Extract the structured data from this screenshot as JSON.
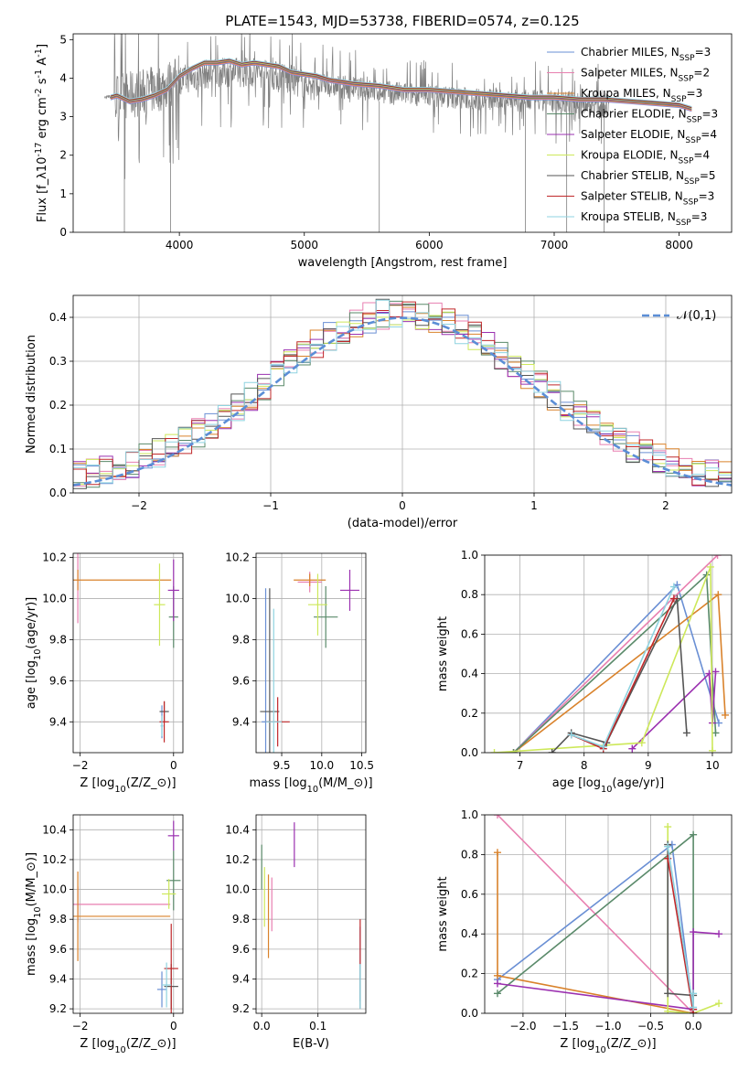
{
  "figure_title": "PLATE=1543, MJD=53738, FIBERID=0574, z=0.125",
  "models": [
    {
      "label": "Chabrier MILES, N$_{SSP}$=3",
      "imf": "Chabrier",
      "library": "MILES",
      "n_ssp": "3",
      "color": "#6a8fd4"
    },
    {
      "label": "Salpeter MILES, N$_{SSP}$=2",
      "imf": "Salpeter",
      "library": "MILES",
      "n_ssp": "2",
      "color": "#e87fb0"
    },
    {
      "label": "Kroupa MILES, N$_{SSP}$=3",
      "imf": "Kroupa",
      "library": "MILES",
      "n_ssp": "3",
      "color": "#d9822b"
    },
    {
      "label": "Chabrier ELODIE, N$_{SSP}$=3",
      "imf": "Chabrier",
      "library": "ELODIE",
      "n_ssp": "3",
      "color": "#5a8a6a"
    },
    {
      "label": "Salpeter ELODIE, N$_{SSP}$=4",
      "imf": "Salpeter",
      "library": "ELODIE",
      "n_ssp": "4",
      "color": "#9b30b0"
    },
    {
      "label": "Kroupa ELODIE, N$_{SSP}$=4",
      "imf": "Kroupa",
      "library": "ELODIE",
      "n_ssp": "4",
      "color": "#cde85a"
    },
    {
      "label": "Chabrier STELIB, N$_{SSP}$=5",
      "imf": "Chabrier",
      "library": "STELIB",
      "n_ssp": "5",
      "color": "#555555"
    },
    {
      "label": "Salpeter STELIB, N$_{SSP}$=3",
      "imf": "Salpeter",
      "library": "STELIB",
      "n_ssp": "3",
      "color": "#c0282a"
    },
    {
      "label": "Kroupa STELIB, N$_{SSP}$=3",
      "imf": "Kroupa",
      "library": "STELIB",
      "n_ssp": "3",
      "color": "#8fd3e0"
    }
  ],
  "chart_data": [
    {
      "id": "spectrum",
      "type": "line",
      "title": "PLATE=1543, MJD=53738, FIBERID=0574, z=0.125",
      "xlabel": "wavelength [Angstrom, rest frame]",
      "ylabel": "Flux [f$_\\lambda$10$^{-17}$ erg cm$^{-2}$ s$^{-1}$ A$^{-1}$]",
      "xlim": [
        3150,
        8420
      ],
      "ylim": [
        0,
        5.15
      ],
      "xticks": [
        4000,
        5000,
        6000,
        7000,
        8000
      ],
      "yticks": [
        0,
        1,
        2,
        3,
        4,
        5
      ],
      "grid": false,
      "legend": "right",
      "data_color": "#808080",
      "data_envelope": {
        "x": [
          3400,
          3600,
          3800,
          4000,
          4200,
          4400,
          4600,
          4800,
          5000,
          5200,
          5400,
          5600,
          5800,
          6000,
          6200,
          6400,
          6600,
          6800,
          7000,
          7200,
          7400
        ],
        "y": [
          3.5,
          3.55,
          3.7,
          3.95,
          4.1,
          4.15,
          4.15,
          4.05,
          3.85,
          3.8,
          3.75,
          3.65,
          3.6,
          3.55,
          3.5,
          3.45,
          3.45,
          3.4,
          3.4,
          3.35,
          3.3
        ]
      },
      "model_curve": {
        "x": [
          3450,
          3500,
          3600,
          3700,
          3800,
          3900,
          4000,
          4100,
          4200,
          4300,
          4400,
          4500,
          4600,
          4700,
          4800,
          4900,
          5000,
          5100,
          5200,
          5400,
          5600,
          5800,
          6000,
          6200,
          6400,
          6600,
          6800,
          7000,
          7200,
          7400,
          7600,
          7800,
          8000,
          8100
        ],
        "y": [
          3.5,
          3.55,
          3.4,
          3.45,
          3.55,
          3.7,
          4.05,
          4.25,
          4.4,
          4.4,
          4.45,
          4.35,
          4.4,
          4.35,
          4.3,
          4.15,
          4.1,
          4.05,
          3.95,
          3.85,
          3.8,
          3.7,
          3.7,
          3.65,
          3.6,
          3.55,
          3.5,
          3.5,
          3.45,
          3.45,
          3.4,
          3.35,
          3.3,
          3.2
        ]
      }
    },
    {
      "id": "residuals",
      "type": "line",
      "xlabel": "(data-model)/error",
      "ylabel": "Normed distribution",
      "xlim": [
        -2.5,
        2.5
      ],
      "ylim": [
        0,
        0.45
      ],
      "xticks": [
        -2,
        -1,
        0,
        1,
        2
      ],
      "yticks": [
        0.0,
        0.1,
        0.2,
        0.3,
        0.4
      ],
      "grid": true,
      "legend": "top-right",
      "gaussian_label": "$\\mathcal{N}(0,1)$",
      "gaussian_color": "#5b8ed6"
    },
    {
      "id": "age_vs_Z",
      "type": "scatter",
      "xlabel": "Z [log$_{10}$(Z/Z$_\\odot$)]",
      "ylabel": "age  [log$_{10}$(age/yr)]",
      "xlim": [
        -2.15,
        0.2
      ],
      "ylim": [
        9.25,
        10.22
      ],
      "xticks": [
        -2,
        0
      ],
      "yticks": [
        9.4,
        9.6,
        9.8,
        10.0,
        10.2
      ],
      "grid": true,
      "points": [
        {
          "model": 0,
          "x": -0.25,
          "y": 9.4,
          "xerr": 0.02,
          "yerr": 0.08
        },
        {
          "model": 1,
          "x": -2.05,
          "y": 10.08,
          "xerr": 0.0,
          "yerr": 0.2
        },
        {
          "model": 2,
          "x": -2.05,
          "y": 10.09,
          "xerr": 2.0,
          "yerr": 0.05
        },
        {
          "model": 3,
          "x": 0.0,
          "y": 9.91,
          "xerr": 0.1,
          "yerr": 0.15
        },
        {
          "model": 4,
          "x": 0.0,
          "y": 10.04,
          "xerr": 0.12,
          "yerr": 0.15
        },
        {
          "model": 5,
          "x": -0.3,
          "y": 9.97,
          "xerr": 0.12,
          "yerr": 0.2
        },
        {
          "model": 6,
          "x": -0.2,
          "y": 9.45,
          "xerr": 0.1,
          "yerr": 0.05
        },
        {
          "model": 7,
          "x": -0.2,
          "y": 9.4,
          "xerr": 0.1,
          "yerr": 0.1
        },
        {
          "model": 8,
          "x": -0.25,
          "y": 9.38,
          "xerr": 0.03,
          "yerr": 0.05
        }
      ]
    },
    {
      "id": "age_vs_mass",
      "type": "scatter",
      "xlabel": "mass [log$_{10}$(M/M$_\\odot$)]",
      "ylabel": "",
      "xlim": [
        9.18,
        10.55
      ],
      "ylim": [
        9.25,
        10.22
      ],
      "xticks": [
        9.5,
        10.0,
        10.5
      ],
      "yticks": [
        9.4,
        9.6,
        9.8,
        10.0,
        10.2
      ],
      "grid": true,
      "points": [
        {
          "model": 0,
          "x": 9.3,
          "y": 9.4,
          "xerr": 0.05,
          "yerr": 0.65
        },
        {
          "model": 1,
          "x": 9.85,
          "y": 10.08,
          "xerr": 0.15,
          "yerr": 0.05
        },
        {
          "model": 2,
          "x": 9.85,
          "y": 10.09,
          "xerr": 0.2,
          "yerr": 0.03
        },
        {
          "model": 3,
          "x": 10.05,
          "y": 9.91,
          "xerr": 0.15,
          "yerr": 0.15
        },
        {
          "model": 4,
          "x": 10.35,
          "y": 10.04,
          "xerr": 0.12,
          "yerr": 0.1
        },
        {
          "model": 5,
          "x": 9.95,
          "y": 9.97,
          "xerr": 0.12,
          "yerr": 0.15
        },
        {
          "model": 6,
          "x": 9.35,
          "y": 9.45,
          "xerr": 0.12,
          "yerr": 0.6
        },
        {
          "model": 7,
          "x": 9.45,
          "y": 9.4,
          "xerr": 0.15,
          "yerr": 0.12
        },
        {
          "model": 8,
          "x": 9.4,
          "y": 9.4,
          "xerr": 0.1,
          "yerr": 0.55
        }
      ]
    },
    {
      "id": "mass_weight_vs_age",
      "type": "line",
      "xlabel": "age  [log$_{10}$(age/yr)]",
      "ylabel": "mass weight",
      "xlim": [
        6.45,
        10.3
      ],
      "ylim": [
        0,
        1.0
      ],
      "xticks": [
        7,
        8,
        9,
        10
      ],
      "yticks": [
        0.0,
        0.2,
        0.4,
        0.6,
        0.8,
        1.0
      ],
      "grid": true,
      "series": [
        {
          "model": 0,
          "x": [
            6.9,
            9.45,
            10.1
          ],
          "y": [
            0.0,
            0.85,
            0.15
          ]
        },
        {
          "model": 1,
          "x": [
            6.9,
            10.08
          ],
          "y": [
            0.0,
            1.0
          ]
        },
        {
          "model": 2,
          "x": [
            6.9,
            10.09,
            10.2
          ],
          "y": [
            0.0,
            0.8,
            0.19
          ]
        },
        {
          "model": 3,
          "x": [
            6.9,
            9.91,
            10.05
          ],
          "y": [
            0.0,
            0.9,
            0.1
          ]
        },
        {
          "model": 4,
          "x": [
            8.75,
            9.95,
            10.0,
            10.05
          ],
          "y": [
            0.02,
            0.4,
            0.15,
            0.41
          ]
        },
        {
          "model": 5,
          "x": [
            6.6,
            8.9,
            9.97,
            10.0
          ],
          "y": [
            0.0,
            0.05,
            0.94,
            0.01
          ]
        },
        {
          "model": 6,
          "x": [
            7.5,
            7.8,
            8.35,
            9.45,
            9.6
          ],
          "y": [
            0.0,
            0.1,
            0.05,
            0.78,
            0.1
          ]
        },
        {
          "model": 7,
          "x": [
            7.8,
            8.3,
            9.4
          ],
          "y": [
            0.09,
            0.02,
            0.78
          ]
        },
        {
          "model": 8,
          "x": [
            7.8,
            8.3,
            9.4
          ],
          "y": [
            0.09,
            0.03,
            0.84
          ]
        }
      ]
    },
    {
      "id": "mass_vs_Z",
      "type": "scatter",
      "xlabel": "Z [log$_{10}$(Z/Z$_\\odot$)]",
      "ylabel": "mass [log$_{10}$(M/M$_\\odot$)]",
      "xlim": [
        -2.15,
        0.2
      ],
      "ylim": [
        9.17,
        10.5
      ],
      "xticks": [
        -2,
        0
      ],
      "yticks": [
        9.2,
        9.4,
        9.6,
        9.8,
        10.0,
        10.2,
        10.4
      ],
      "grid": true,
      "points": [
        {
          "model": 0,
          "x": -0.25,
          "y": 9.33,
          "xerr": 0.1,
          "yerr": 0.12
        },
        {
          "model": 1,
          "x": -2.05,
          "y": 9.9,
          "xerr": 1.98,
          "yerr": 0.12
        },
        {
          "model": 2,
          "x": -2.05,
          "y": 9.82,
          "xerr": 1.98,
          "yerr": 0.3
        },
        {
          "model": 3,
          "x": 0.0,
          "y": 10.06,
          "xerr": 0.15,
          "yerr": 0.2
        },
        {
          "model": 4,
          "x": 0.0,
          "y": 10.36,
          "xerr": 0.12,
          "yerr": 0.1
        },
        {
          "model": 5,
          "x": -0.1,
          "y": 9.97,
          "xerr": 0.15,
          "yerr": 0.1
        },
        {
          "model": 6,
          "x": -0.05,
          "y": 9.35,
          "xerr": 0.15,
          "yerr": 0.15
        },
        {
          "model": 7,
          "x": -0.05,
          "y": 9.47,
          "xerr": 0.15,
          "yerr": 0.3
        },
        {
          "model": 8,
          "x": -0.15,
          "y": 9.36,
          "xerr": 0.1,
          "yerr": 0.15
        }
      ]
    },
    {
      "id": "mass_vs_ebv",
      "type": "scatter",
      "xlabel": "E(B-V)",
      "ylabel": "",
      "xlim": [
        -0.01,
        0.185
      ],
      "ylim": [
        9.17,
        10.5
      ],
      "xticks": [
        0.0,
        0.1
      ],
      "yticks": [
        9.2,
        9.4,
        9.6,
        9.8,
        10.0,
        10.2,
        10.4
      ],
      "grid": true,
      "points": [
        {
          "model": 0,
          "x": 0.175,
          "y": 9.5,
          "xerr": 0.0,
          "yerr": 0.25
        },
        {
          "model": 1,
          "x": 0.018,
          "y": 9.9,
          "xerr": 0.0,
          "yerr": 0.18
        },
        {
          "model": 2,
          "x": 0.012,
          "y": 9.82,
          "xerr": 0.0,
          "yerr": 0.28
        },
        {
          "model": 3,
          "x": 0.0,
          "y": 10.15,
          "xerr": 0.0,
          "yerr": 0.15
        },
        {
          "model": 4,
          "x": 0.058,
          "y": 10.3,
          "xerr": 0.0,
          "yerr": 0.15
        },
        {
          "model": 5,
          "x": 0.005,
          "y": 9.95,
          "xerr": 0.0,
          "yerr": 0.2
        },
        {
          "model": 6,
          "x": 0.175,
          "y": 9.35,
          "xerr": 0.0,
          "yerr": 0.15
        },
        {
          "model": 7,
          "x": 0.175,
          "y": 9.65,
          "xerr": 0.0,
          "yerr": 0.15
        },
        {
          "model": 8,
          "x": 0.175,
          "y": 9.35,
          "xerr": 0.0,
          "yerr": 0.15
        }
      ]
    },
    {
      "id": "mass_weight_vs_Z",
      "type": "line",
      "xlabel": "Z [log$_{10}$(Z/Z$_\\odot$)]",
      "ylabel": "mass weight",
      "xlim": [
        -2.45,
        0.45
      ],
      "ylim": [
        0,
        1.0
      ],
      "xticks": [
        -2.0,
        -1.5,
        -1.0,
        -0.5,
        0.0
      ],
      "yticks": [
        0.0,
        0.2,
        0.4,
        0.6,
        0.8,
        1.0
      ],
      "grid": true,
      "series": [
        {
          "model": 0,
          "x": [
            -2.3,
            -0.25,
            0.0
          ],
          "y": [
            0.17,
            0.85,
            0.0
          ]
        },
        {
          "model": 1,
          "x": [
            -2.3,
            0.0
          ],
          "y": [
            1.0,
            0.0
          ]
        },
        {
          "model": 2,
          "x": [
            -2.3,
            -2.3,
            0.0
          ],
          "y": [
            0.81,
            0.19,
            0.0
          ]
        },
        {
          "model": 3,
          "x": [
            -2.3,
            0.0,
            0.0
          ],
          "y": [
            0.1,
            0.9,
            0.0
          ]
        },
        {
          "model": 4,
          "x": [
            -2.3,
            0.0,
            0.0,
            0.3
          ],
          "y": [
            0.15,
            0.02,
            0.41,
            0.4
          ]
        },
        {
          "model": 5,
          "x": [
            -0.3,
            -0.3,
            0.0,
            0.3
          ],
          "y": [
            0.94,
            0.01,
            0.0,
            0.05
          ]
        },
        {
          "model": 6,
          "x": [
            -0.3,
            -0.3,
            0.0,
            0.0
          ],
          "y": [
            0.85,
            0.1,
            0.09,
            0.0
          ]
        },
        {
          "model": 7,
          "x": [
            -0.3,
            0.0,
            0.0
          ],
          "y": [
            0.78,
            0.0,
            0.02
          ]
        },
        {
          "model": 8,
          "x": [
            -0.3,
            0.0,
            0.0
          ],
          "y": [
            0.84,
            0.03,
            0.1
          ]
        }
      ]
    }
  ]
}
